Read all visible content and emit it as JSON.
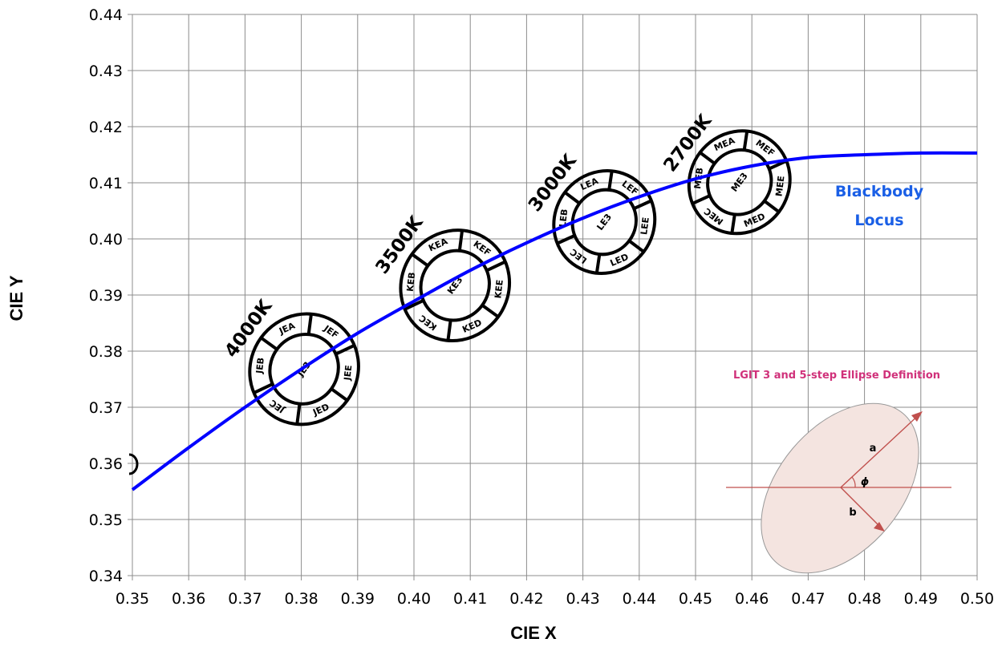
{
  "chart_data": {
    "type": "line",
    "xlabel": "CIE X",
    "ylabel": "CIE Y",
    "xlim": [
      0.35,
      0.5
    ],
    "ylim": [
      0.34,
      0.44
    ],
    "x_ticks": [
      "0.35",
      "0.36",
      "0.37",
      "0.38",
      "0.39",
      "0.40",
      "0.41",
      "0.42",
      "0.43",
      "0.44",
      "0.45",
      "0.46",
      "0.47",
      "0.48",
      "0.49",
      "0.50"
    ],
    "y_ticks": [
      "0.34",
      "0.35",
      "0.36",
      "0.37",
      "0.38",
      "0.39",
      "0.40",
      "0.41",
      "0.42",
      "0.43",
      "0.44"
    ],
    "grid": true,
    "series": [
      {
        "name": "Blackbody Locus",
        "color": "#0000ff",
        "x": [
          0.35,
          0.36,
          0.37,
          0.38,
          0.39,
          0.4,
          0.41,
          0.42,
          0.43,
          0.44,
          0.45,
          0.46,
          0.47,
          0.48,
          0.49,
          0.5
        ],
        "y": [
          0.3553,
          0.3628,
          0.37,
          0.3768,
          0.3832,
          0.3889,
          0.3944,
          0.3993,
          0.4037,
          0.4075,
          0.4107,
          0.413,
          0.4145,
          0.415,
          0.4153,
          0.4153
        ]
      }
    ],
    "bins": [
      {
        "cct": "4000K",
        "center": [
          0.3805,
          0.3768
        ],
        "a": 0.01,
        "b": 0.0095,
        "angle_deg": 54,
        "center_label": "JE3",
        "segments": [
          "JEA",
          "JEB",
          "JEC",
          "JED",
          "JEE",
          "JEF"
        ]
      },
      {
        "cct": "3500K",
        "center": [
          0.4073,
          0.3917
        ],
        "a": 0.01,
        "b": 0.0095,
        "angle_deg": 54,
        "center_label": "KE3",
        "segments": [
          "KEA",
          "KEB",
          "KEC",
          "KED",
          "KEE",
          "KEF"
        ]
      },
      {
        "cct": "3000K",
        "center": [
          0.4338,
          0.403
        ],
        "a": 0.0093,
        "b": 0.0088,
        "angle_deg": 53,
        "center_label": "LE3",
        "segments": [
          "LEA",
          "LEB",
          "LEC",
          "LED",
          "LEE",
          "LEF"
        ]
      },
      {
        "cct": "2700K",
        "center": [
          0.4578,
          0.4101
        ],
        "a": 0.0093,
        "b": 0.0088,
        "angle_deg": 53,
        "center_label": "ME3",
        "segments": [
          "MEA",
          "MEB",
          "MEC",
          "MED",
          "MEE",
          "MEF"
        ]
      }
    ],
    "annotations": {
      "locus_label_line1": "Blackbody",
      "locus_label_line2": "Locus",
      "locus_label_color": "#1a5fe6",
      "inset_title": "LGIT 3 and 5-step Ellipse Definition",
      "inset_title_color": "#d0317a",
      "inset_a": "a",
      "inset_b": "b",
      "inset_phi": "ϕ",
      "inset_fill": "#f4e4e0",
      "inset_arrow_color": "#c0504d"
    }
  }
}
